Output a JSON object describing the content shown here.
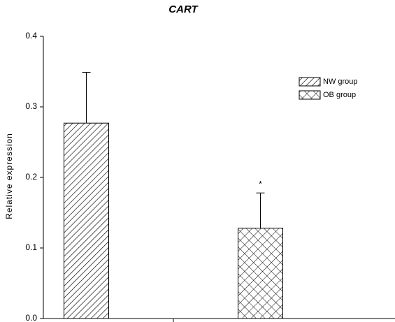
{
  "chart_data": {
    "type": "bar",
    "title": "CART",
    "y_label": "Relative expression",
    "categories": [
      null
    ],
    "series": [
      {
        "name": "NW group",
        "color": "#000000",
        "pattern": "diagonal",
        "values": [
          0.277
        ],
        "errors": [
          0.072
        ]
      },
      {
        "name": "OB group",
        "color": "#000000",
        "pattern": "cross",
        "values": [
          0.128
        ],
        "errors": [
          0.05
        ]
      }
    ],
    "annotation": "*",
    "ylim": [
      0,
      0.4
    ],
    "yticks": [
      {
        "value": 0,
        "label": "0.0"
      },
      0.1,
      0.2,
      0.3,
      0.4
    ],
    "grid": false,
    "legend": "upper right"
  }
}
